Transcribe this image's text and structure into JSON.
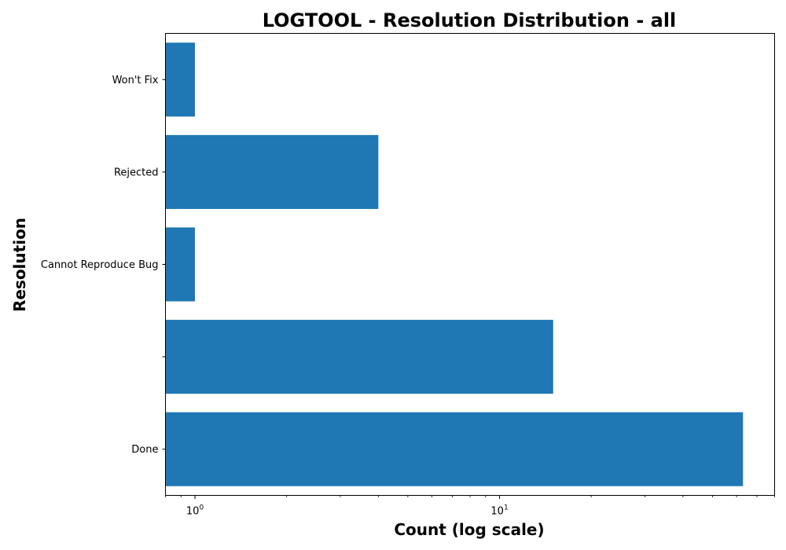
{
  "chart_data": {
    "type": "bar",
    "orientation": "horizontal",
    "title": "LOGTOOL - Resolution Distribution - all",
    "xlabel": "Count (log scale)",
    "ylabel": "Resolution",
    "x_scale": "log",
    "xlim": [
      0.8,
      80
    ],
    "x_major_ticks": [
      {
        "value": 1,
        "base": "10",
        "exponent": "0"
      },
      {
        "value": 10,
        "base": "10",
        "exponent": "1"
      }
    ],
    "categories": [
      "Done",
      "",
      "Cannot Reproduce Bug",
      "Rejected",
      "Won't Fix"
    ],
    "values": [
      63,
      15,
      1,
      4,
      1
    ],
    "color": "#1f77b4",
    "grid": false,
    "legend": false
  }
}
